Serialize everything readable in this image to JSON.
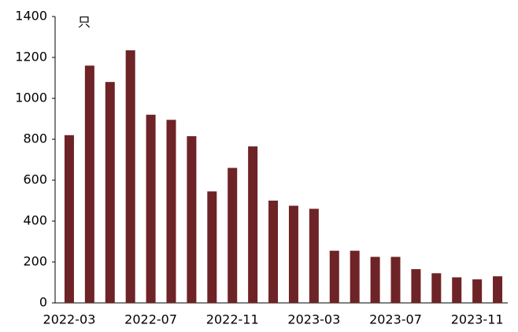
{
  "chart_data": {
    "type": "bar",
    "unit_label": "只",
    "categories": [
      "2022-03",
      null,
      null,
      null,
      "2022-07",
      null,
      null,
      null,
      "2022-11",
      null,
      null,
      null,
      "2023-03",
      null,
      null,
      null,
      "2023-07",
      null,
      null,
      null,
      "2023-11",
      null
    ],
    "values": [
      820,
      1160,
      1080,
      1235,
      920,
      895,
      815,
      545,
      660,
      765,
      500,
      475,
      460,
      255,
      255,
      225,
      225,
      165,
      145,
      125,
      115,
      130
    ],
    "color": "#6e2327",
    "ylim": [
      0,
      1400
    ],
    "yticks": [
      0,
      200,
      400,
      600,
      800,
      1000,
      1200,
      1400
    ],
    "grid": false
  }
}
